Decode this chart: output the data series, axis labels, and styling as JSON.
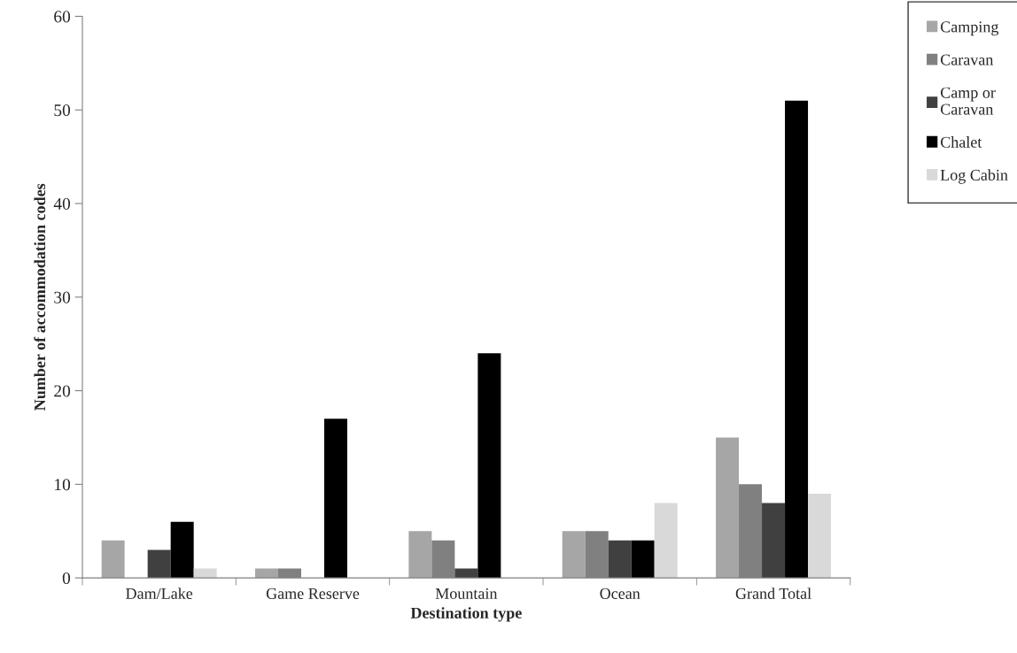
{
  "chart_data": {
    "type": "bar",
    "xlabel": "Destination type",
    "ylabel": "Number of accommodation codes",
    "categories": [
      "Dam/Lake",
      "Game Reserve",
      "Mountain",
      "Ocean",
      "Grand Total"
    ],
    "series": [
      {
        "name": "Camping",
        "color": "#a6a6a6",
        "values": [
          4,
          1,
          5,
          5,
          15
        ]
      },
      {
        "name": "Caravan",
        "color": "#808080",
        "values": [
          0,
          1,
          4,
          5,
          10
        ]
      },
      {
        "name": "Camp or\nCaravan",
        "color": "#404040",
        "values": [
          3,
          0,
          1,
          4,
          8
        ]
      },
      {
        "name": "Chalet",
        "color": "#000000",
        "values": [
          6,
          17,
          24,
          4,
          51
        ]
      },
      {
        "name": "Log Cabin",
        "color": "#d9d9d9",
        "values": [
          1,
          0,
          0,
          8,
          9
        ]
      }
    ],
    "ylim": [
      0,
      60
    ],
    "yticks": [
      0,
      10,
      20,
      30,
      40,
      50,
      60
    ],
    "grid": false,
    "legend": "top right"
  }
}
